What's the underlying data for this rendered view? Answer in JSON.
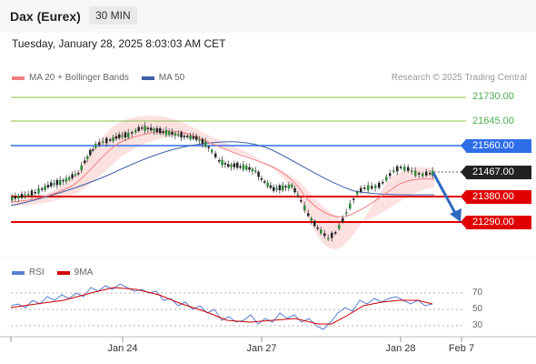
{
  "header": {
    "title": "Dax (Eurex)",
    "timeframe": "30 MIN",
    "datetime": "Tuesday, January 28, 2025 8:03:03 AM CET"
  },
  "legend": {
    "ma20": "MA 20 + Bollinger Bands",
    "ma50": "MA 50",
    "ma20_color": "#f08080",
    "ma50_color": "#3f5ea8"
  },
  "credit": "Research © 2025 Trading Central",
  "levels": [
    {
      "id": "r3",
      "label": "21730.00",
      "value": 21730,
      "kind": "target",
      "color": "#8bc34a"
    },
    {
      "id": "r2",
      "label": "21645.00",
      "value": 21645,
      "kind": "target",
      "color": "#8bc34a"
    },
    {
      "id": "r1",
      "label": "21560.00",
      "value": 21560,
      "kind": "resistance",
      "color": "#2f6ee8"
    },
    {
      "id": "last",
      "label": "21467.00",
      "value": 21467,
      "kind": "last",
      "color": "#222222"
    },
    {
      "id": "s1",
      "label": "21380.00",
      "value": 21380,
      "kind": "support",
      "color": "#e00000"
    },
    {
      "id": "s2",
      "label": "21290.00",
      "value": 21290,
      "kind": "support",
      "color": "#e00000"
    }
  ],
  "rsi": {
    "legend_rsi": "RSI",
    "legend_ma": "9MA",
    "rsi_color": "#5b7fd6",
    "ma_color": "#d00000",
    "ticks": [
      "70",
      "50",
      "30"
    ]
  },
  "xaxis": [
    "Jan 24",
    "Jan 27",
    "Jan 28",
    "Feb 7"
  ]
}
